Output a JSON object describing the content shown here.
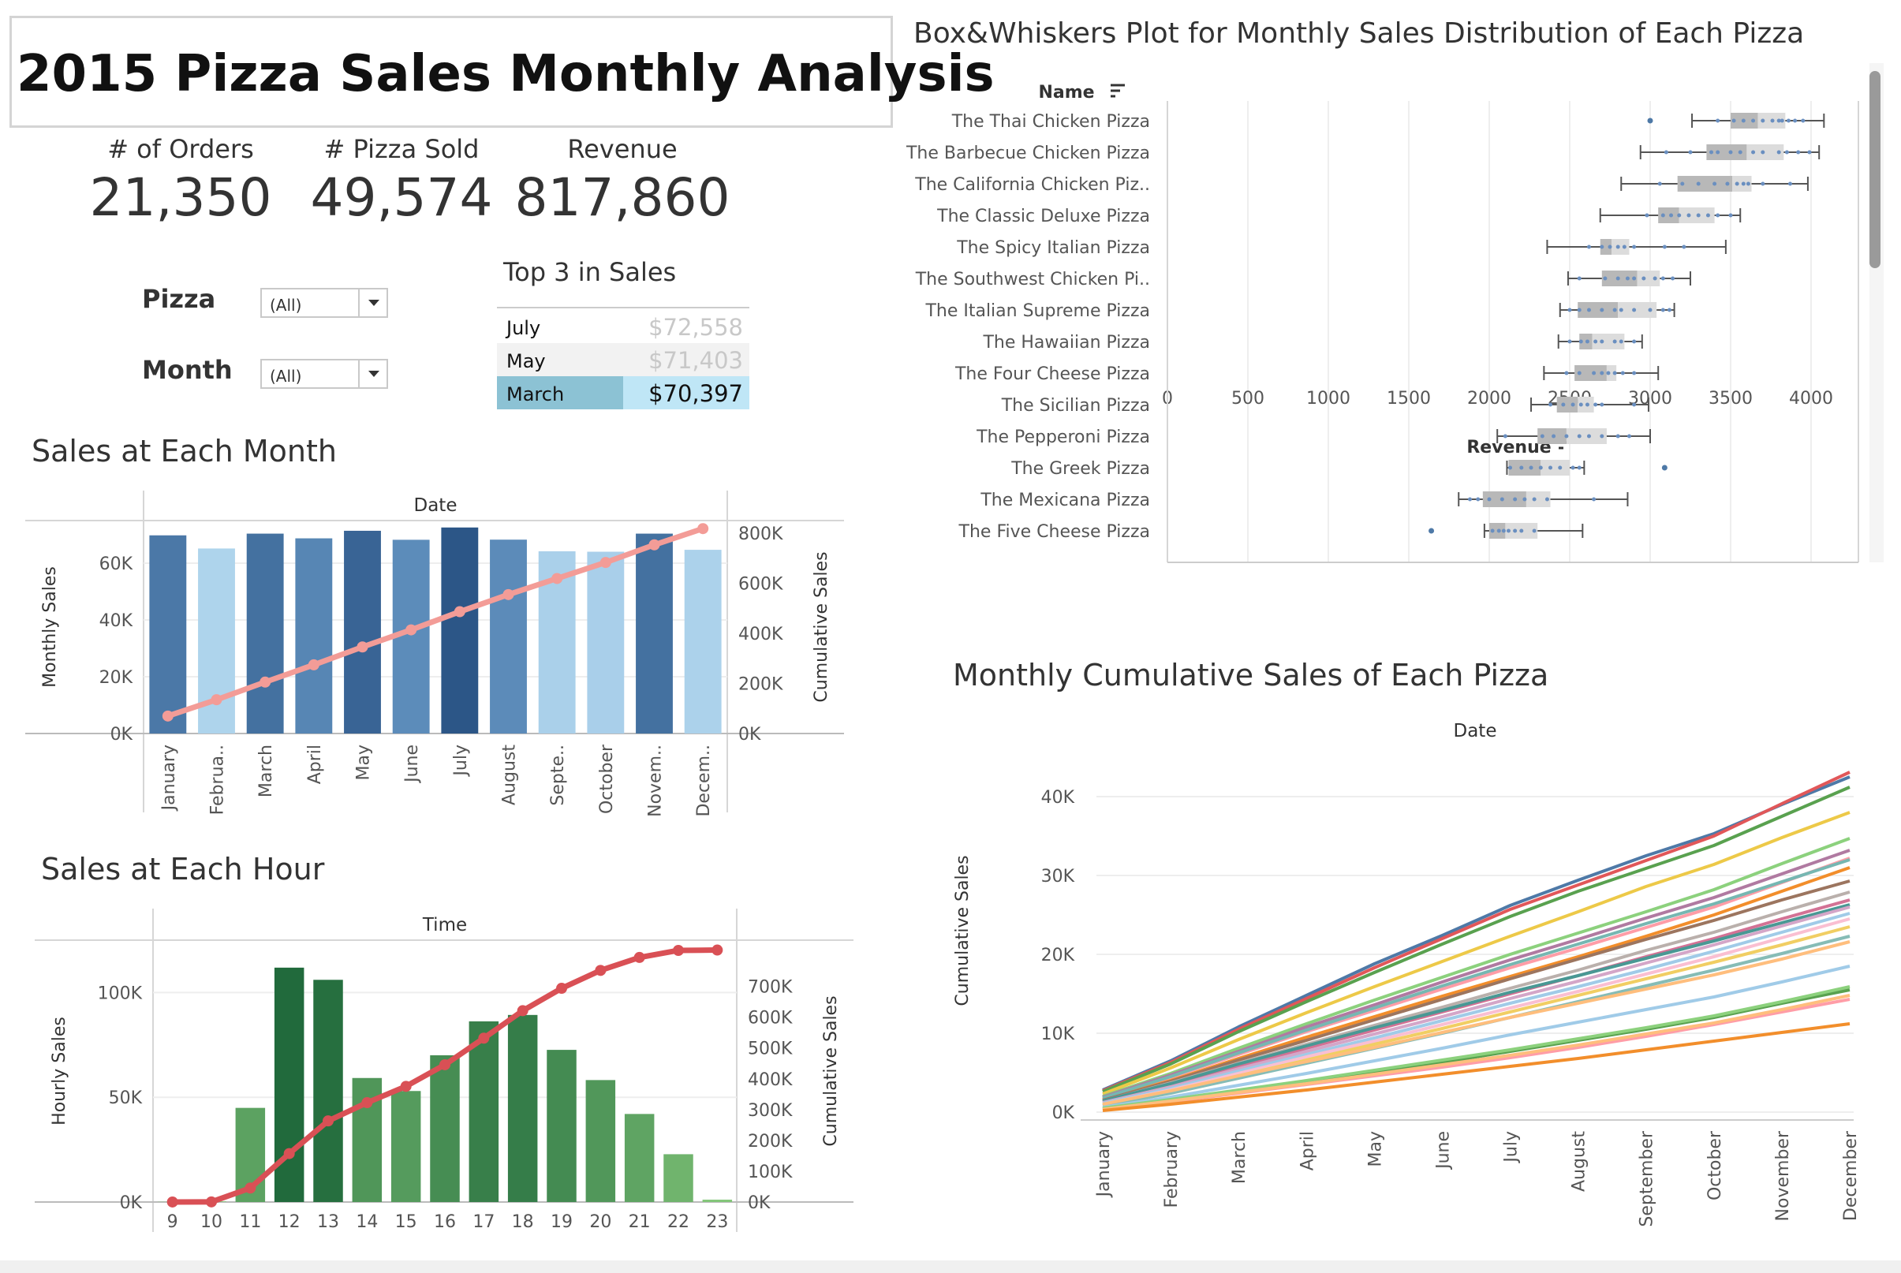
{
  "title": "2015 Pizza Sales Monthly Analysis",
  "kpis": [
    {
      "label": "# of Orders",
      "value": "21,350"
    },
    {
      "label": "# Pizza Sold",
      "value": "49,574"
    },
    {
      "label": "Revenue",
      "value": "817,860"
    }
  ],
  "filters": {
    "pizza": {
      "label": "Pizza",
      "value": "(All)"
    },
    "month": {
      "label": "Month",
      "value": "(All)"
    }
  },
  "top3": {
    "title": "Top 3 in Sales",
    "rows": [
      {
        "month": "July",
        "value": "$72,558"
      },
      {
        "month": "May",
        "value": "$71,403"
      },
      {
        "month": "March",
        "value": "$70,397"
      }
    ]
  },
  "colors": {
    "blue_dark": "#2c5687",
    "blue_mid": "#4a7bab",
    "blue_light": "#a9cfea",
    "salmon": "#f39c97",
    "green_dark": "#216a3c",
    "green_light": "#84c77a",
    "red_line": "#d95055",
    "box_gray": "#b5b5b5"
  },
  "chart_data": [
    {
      "type": "bar",
      "title": "Sales at Each Month",
      "header": "Date",
      "categories": [
        "January",
        "Februa..",
        "March",
        "April",
        "May",
        "June",
        "July",
        "August",
        "Septe..",
        "October",
        "Novem..",
        "Decem.."
      ],
      "series": [
        {
          "name": "Monthly Sales",
          "values": [
            69793,
            65159,
            70397,
            68737,
            71403,
            68230,
            72558,
            68278,
            64180,
            64028,
            70395,
            64702
          ]
        },
        {
          "name": "Cumulative Sales",
          "values": [
            69793,
            134952,
            205349,
            274086,
            345489,
            413719,
            486277,
            554555,
            618735,
            682763,
            753158,
            817860
          ]
        }
      ],
      "ylabel": "Monthly Sales",
      "y2label": "Cumulative Sales",
      "yticks": [
        "0K",
        "20K",
        "40K",
        "60K"
      ],
      "y2ticks": [
        "0K",
        "200K",
        "400K",
        "600K",
        "800K"
      ],
      "ylim": [
        0,
        75000
      ],
      "y2lim": [
        0,
        850000
      ]
    },
    {
      "type": "bar",
      "title": "Sales at Each Hour",
      "header": "Time",
      "categories": [
        "9",
        "10",
        "11",
        "12",
        "13",
        "14",
        "15",
        "16",
        "17",
        "18",
        "19",
        "20",
        "21",
        "22",
        "23"
      ],
      "series": [
        {
          "name": "Hourly Sales",
          "values": [
            84,
            304,
            44936,
            111878,
            106066,
            59201,
            52992,
            70055,
            86237,
            89296,
            72628,
            58215,
            42030,
            22816,
            1121
          ]
        },
        {
          "name": "Cumulative Sales",
          "values": [
            84,
            388,
            45324,
            157202,
            263268,
            322469,
            375461,
            445516,
            531753,
            621049,
            693677,
            751892,
            793922,
            816738,
            817860
          ]
        }
      ],
      "ylabel": "Hourly Sales",
      "y2label": "Cumulative Sales",
      "yticks": [
        "0K",
        "50K",
        "100K"
      ],
      "y2ticks": [
        "0K",
        "100K",
        "200K",
        "300K",
        "400K",
        "500K",
        "600K",
        "700K"
      ],
      "ylim": [
        0,
        125000
      ],
      "y2lim": [
        0,
        850000
      ]
    },
    {
      "type": "box",
      "title": "Box&Whiskers Plot for Monthly Sales Distribution of Each Pizza",
      "header": "Name",
      "xlabel": "Revenue",
      "xticks": [
        "0",
        "500",
        "1000",
        "1500",
        "2000",
        "2500",
        "3000",
        "3500",
        "4000"
      ],
      "xlim": [
        0,
        4300
      ],
      "rows": [
        {
          "name": "The Thai Chicken Pizza",
          "min": 3260,
          "q1": 3500,
          "median": 3670,
          "q3": 3840,
          "max": 4080,
          "outliers": [
            3000
          ],
          "points": [
            3420,
            3520,
            3580,
            3640,
            3700,
            3760,
            3800,
            3820,
            3860,
            3900,
            3950
          ]
        },
        {
          "name": "The Barbecue Chicken Pizza",
          "min": 2940,
          "q1": 3350,
          "median": 3600,
          "q3": 3830,
          "max": 4050,
          "outliers": [],
          "points": [
            3100,
            3250,
            3380,
            3420,
            3500,
            3560,
            3640,
            3700,
            3800,
            3850,
            3920,
            3990
          ]
        },
        {
          "name": "The California Chicken Piz..",
          "min": 2820,
          "q1": 3170,
          "median": 3510,
          "q3": 3630,
          "max": 3980,
          "outliers": [],
          "points": [
            3060,
            3200,
            3300,
            3400,
            3480,
            3540,
            3580,
            3610,
            3700,
            3870
          ]
        },
        {
          "name": "The Classic Deluxe Pizza",
          "min": 2690,
          "q1": 3050,
          "median": 3180,
          "q3": 3400,
          "max": 3560,
          "outliers": [],
          "points": [
            2980,
            3080,
            3130,
            3180,
            3240,
            3300,
            3360,
            3420,
            3500
          ]
        },
        {
          "name": "The Spicy Italian Pizza",
          "min": 2360,
          "q1": 2690,
          "median": 2760,
          "q3": 2870,
          "max": 3470,
          "outliers": [],
          "points": [
            2620,
            2700,
            2750,
            2800,
            2840,
            2900,
            3090,
            3210
          ]
        },
        {
          "name": "The Southwest Chicken Pi..",
          "min": 2490,
          "q1": 2700,
          "median": 2920,
          "q3": 3060,
          "max": 3250,
          "outliers": [],
          "points": [
            2560,
            2720,
            2800,
            2860,
            2900,
            2960,
            3030,
            3080,
            3140
          ]
        },
        {
          "name": "The Italian Supreme Pizza",
          "min": 2440,
          "q1": 2550,
          "median": 2800,
          "q3": 3040,
          "max": 3150,
          "outliers": [],
          "points": [
            2500,
            2560,
            2620,
            2700,
            2780,
            2820,
            2900,
            3000,
            3080,
            3120
          ]
        },
        {
          "name": "The Hawaiian Pizza",
          "min": 2430,
          "q1": 2560,
          "median": 2640,
          "q3": 2840,
          "max": 2950,
          "outliers": [],
          "points": [
            2500,
            2570,
            2610,
            2660,
            2700,
            2780,
            2820,
            2900
          ]
        },
        {
          "name": "The Four Cheese Pizza",
          "min": 2340,
          "q1": 2530,
          "median": 2730,
          "q3": 2790,
          "max": 3050,
          "outliers": [],
          "points": [
            2480,
            2560,
            2650,
            2700,
            2740,
            2780,
            2830,
            2900
          ]
        },
        {
          "name": "The Sicilian Pizza",
          "min": 2260,
          "q1": 2420,
          "median": 2550,
          "q3": 2650,
          "max": 2990,
          "outliers": [],
          "points": [
            2380,
            2460,
            2520,
            2570,
            2610,
            2660,
            2700,
            2900
          ]
        },
        {
          "name": "The Pepperoni Pizza",
          "min": 2050,
          "q1": 2300,
          "median": 2480,
          "q3": 2730,
          "max": 3000,
          "outliers": [],
          "points": [
            2100,
            2330,
            2400,
            2480,
            2560,
            2620,
            2700,
            2800,
            2870
          ]
        },
        {
          "name": "The Greek Pizza",
          "min": 2110,
          "q1": 2120,
          "median": 2320,
          "q3": 2500,
          "max": 2590,
          "outliers": [
            3090
          ],
          "points": [
            2130,
            2200,
            2260,
            2320,
            2380,
            2440,
            2520,
            2560
          ]
        },
        {
          "name": "The Mexicana Pizza",
          "min": 1810,
          "q1": 1960,
          "median": 2230,
          "q3": 2380,
          "max": 2860,
          "outliers": [],
          "points": [
            1880,
            1930,
            2000,
            2080,
            2160,
            2220,
            2280,
            2360,
            2650
          ]
        },
        {
          "name": "The Five Cheese Pizza",
          "min": 1970,
          "q1": 2000,
          "median": 2100,
          "q3": 2300,
          "max": 2580,
          "outliers": [
            1640
          ],
          "points": [
            2020,
            2060,
            2090,
            2120,
            2160,
            2200,
            2280
          ]
        }
      ]
    },
    {
      "type": "line",
      "title": "Monthly Cumulative Sales of Each Pizza",
      "header": "Date",
      "ylabel": "Cumulative Sales",
      "categories": [
        "January",
        "February",
        "March",
        "April",
        "May",
        "June",
        "July",
        "August",
        "September",
        "October",
        "November",
        "December"
      ],
      "yticks": [
        "0K",
        "10K",
        "20K",
        "30K",
        "40K"
      ],
      "ylim": [
        -1000,
        45000
      ],
      "series": [
        {
          "color": "#4e79a7",
          "values": [
            2800,
            6500,
            10800,
            14800,
            18800,
            22400,
            26200,
            29400,
            32500,
            35300,
            39000,
            42500
          ]
        },
        {
          "color": "#e15759",
          "values": [
            2700,
            6300,
            10500,
            14400,
            18300,
            22000,
            25700,
            28800,
            31900,
            35000,
            39100,
            43100
          ]
        },
        {
          "color": "#59a14f",
          "values": [
            2600,
            6100,
            10200,
            14000,
            17700,
            21300,
            24800,
            28000,
            30900,
            33800,
            37500,
            41200
          ]
        },
        {
          "color": "#edc948",
          "values": [
            2300,
            5600,
            9200,
            12600,
            15900,
            19100,
            22300,
            25400,
            28600,
            31400,
            34800,
            38000
          ]
        },
        {
          "color": "#8cd17d",
          "values": [
            2000,
            4900,
            8100,
            11200,
            14200,
            17100,
            20000,
            22700,
            25400,
            28200,
            31500,
            34700
          ]
        },
        {
          "color": "#b07aa1",
          "values": [
            1900,
            4700,
            7700,
            10800,
            13600,
            16500,
            19300,
            21900,
            24600,
            27200,
            30200,
            33200
          ]
        },
        {
          "color": "#ff9da7",
          "values": [
            1700,
            4400,
            7300,
            10200,
            12900,
            15600,
            18300,
            20800,
            23400,
            26000,
            29100,
            32200
          ]
        },
        {
          "color": "#f28e2b",
          "values": [
            1600,
            4000,
            6800,
            9500,
            12100,
            14700,
            17200,
            19700,
            22300,
            25000,
            28000,
            31000
          ]
        },
        {
          "color": "#76b7b2",
          "values": [
            1800,
            4500,
            7500,
            10400,
            13200,
            16000,
            18700,
            21300,
            23900,
            26400,
            29200,
            32000
          ]
        },
        {
          "color": "#9c755f",
          "values": [
            1500,
            3900,
            6600,
            9100,
            11700,
            14300,
            16900,
            19400,
            21900,
            24300,
            26900,
            29300
          ]
        },
        {
          "color": "#bab0ac",
          "values": [
            1400,
            3700,
            6200,
            8600,
            11000,
            13300,
            15700,
            18000,
            20500,
            22800,
            25400,
            27900
          ]
        },
        {
          "color": "#d37295",
          "values": [
            1300,
            3400,
            5800,
            8100,
            10400,
            12700,
            15000,
            17300,
            19700,
            22000,
            24500,
            26900
          ]
        },
        {
          "color": "#499894",
          "values": [
            1400,
            3600,
            6100,
            8400,
            10700,
            12900,
            15200,
            17300,
            19500,
            21700,
            24000,
            26300
          ]
        },
        {
          "color": "#d4a6c8",
          "values": [
            1200,
            3200,
            5500,
            7700,
            9900,
            12100,
            14400,
            16600,
            18900,
            21200,
            23600,
            26000
          ]
        },
        {
          "color": "#a0cbe8",
          "values": [
            1100,
            3000,
            5200,
            7300,
            9400,
            11600,
            13800,
            15900,
            18100,
            20400,
            22800,
            25200
          ]
        },
        {
          "color": "#fabfd2",
          "values": [
            1000,
            2800,
            4900,
            7000,
            9000,
            11100,
            13200,
            15300,
            17500,
            19700,
            22100,
            24500
          ]
        },
        {
          "color": "#f1ce63",
          "values": [
            900,
            2600,
            4600,
            6600,
            8600,
            10600,
            12700,
            14800,
            16900,
            19000,
            21200,
            23500
          ]
        },
        {
          "color": "#86bcb6",
          "values": [
            800,
            2400,
            4300,
            6200,
            8100,
            10000,
            12000,
            14000,
            16000,
            18000,
            20100,
            22300
          ]
        },
        {
          "color": "#ffbe7d",
          "values": [
            1000,
            2700,
            4600,
            6400,
            8200,
            10100,
            12000,
            13800,
            15600,
            17400,
            19400,
            21600
          ]
        },
        {
          "color": "#a0cbe8",
          "values": [
            600,
            1900,
            3400,
            4900,
            6500,
            8100,
            9800,
            11400,
            13000,
            14600,
            16500,
            18500
          ]
        },
        {
          "color": "#59a14f",
          "values": [
            400,
            1500,
            2700,
            3900,
            5100,
            6300,
            7700,
            9100,
            10500,
            12000,
            13800,
            15500
          ]
        },
        {
          "color": "#8cd17d",
          "values": [
            500,
            1600,
            2800,
            4000,
            5300,
            6600,
            7900,
            9300,
            10700,
            12200,
            14000,
            15900
          ]
        },
        {
          "color": "#ff9da7",
          "values": [
            300,
            1300,
            2400,
            3500,
            4600,
            5700,
            6900,
            8200,
            9600,
            11100,
            12700,
            14300
          ]
        },
        {
          "color": "#ffbe7d",
          "values": [
            350,
            1400,
            2500,
            3600,
            4800,
            6000,
            7200,
            8500,
            9900,
            11300,
            13000,
            14800
          ]
        },
        {
          "color": "#f28e2b",
          "values": [
            200,
            1000,
            1900,
            2800,
            3800,
            4800,
            5800,
            6800,
            7900,
            9000,
            10100,
            11200
          ]
        }
      ]
    }
  ]
}
